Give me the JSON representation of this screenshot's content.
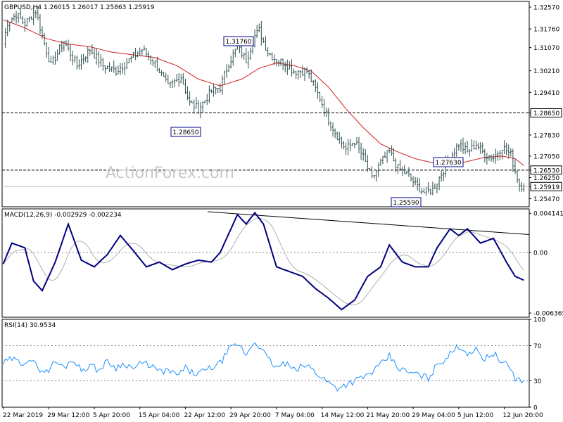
{
  "chart_data": [
    {
      "type": "candlestick",
      "title": "GBPUSD,H4  1.26015 1.26017 1.25863 1.25919",
      "ylim": [
        1.2517,
        1.3278
      ],
      "y_ticks": [
        "1.32570",
        "1.31760",
        "1.31070",
        "1.30210",
        "1.29410",
        "1.28650",
        "1.27830",
        "1.27050",
        "1.26530",
        "1.26250",
        "1.25919",
        "1.25470"
      ],
      "price_labels": [
        {
          "text": "1.32570",
          "value": 1.3257,
          "style": "plain"
        },
        {
          "text": "1.31760",
          "value": 1.3176,
          "style": "plain"
        },
        {
          "text": "1.31070",
          "value": 1.3107,
          "style": "plain"
        },
        {
          "text": "1.30210",
          "value": 1.3021,
          "style": "plain"
        },
        {
          "text": "1.29410",
          "value": 1.2941,
          "style": "plain"
        },
        {
          "text": "1.28650",
          "value": 1.2865,
          "style": "boxed"
        },
        {
          "text": "1.27830",
          "value": 1.2783,
          "style": "plain"
        },
        {
          "text": "1.27050",
          "value": 1.2705,
          "style": "plain"
        },
        {
          "text": "1.26530",
          "value": 1.2653,
          "style": "boxed"
        },
        {
          "text": "1.26250",
          "value": 1.2625,
          "style": "plain"
        },
        {
          "text": "1.25919",
          "value": 1.25919,
          "style": "boxed"
        },
        {
          "text": "1.25470",
          "value": 1.2547,
          "style": "plain"
        }
      ],
      "horizontal_levels": [
        1.2865,
        1.2653
      ],
      "current_price": 1.25919,
      "annotations": [
        {
          "text": "1.31760",
          "value": 1.3176
        },
        {
          "text": "1.28650",
          "value": 1.2865
        },
        {
          "text": "1.27630",
          "value": 1.2763
        },
        {
          "text": "1.25590",
          "value": 1.2559
        }
      ],
      "watermark": "ActionForex.com",
      "key_points": [
        [
          0,
          1.312
        ],
        [
          2,
          1.32
        ],
        [
          6,
          1.323
        ],
        [
          10,
          1.3195
        ],
        [
          15,
          1.3245
        ],
        [
          18,
          1.315
        ],
        [
          22,
          1.304
        ],
        [
          28,
          1.313
        ],
        [
          34,
          1.304
        ],
        [
          40,
          1.31
        ],
        [
          46,
          1.304
        ],
        [
          52,
          1.302
        ],
        [
          58,
          1.306
        ],
        [
          64,
          1.31
        ],
        [
          70,
          1.305
        ],
        [
          76,
          1.296
        ],
        [
          82,
          1.3
        ],
        [
          86,
          1.29
        ],
        [
          90,
          1.288
        ],
        [
          96,
          1.2945
        ],
        [
          100,
          1.296
        ],
        [
          104,
          1.305
        ],
        [
          108,
          1.311
        ],
        [
          112,
          1.306
        ],
        [
          116,
          1.315
        ],
        [
          118,
          1.317
        ],
        [
          122,
          1.309
        ],
        [
          126,
          1.306
        ],
        [
          130,
          1.305
        ],
        [
          134,
          1.302
        ],
        [
          140,
          1.302
        ],
        [
          146,
          1.292
        ],
        [
          150,
          1.284
        ],
        [
          154,
          1.278
        ],
        [
          158,
          1.273
        ],
        [
          162,
          1.276
        ],
        [
          166,
          1.27
        ],
        [
          170,
          1.262
        ],
        [
          174,
          1.268
        ],
        [
          178,
          1.272
        ],
        [
          182,
          1.266
        ],
        [
          186,
          1.264
        ],
        [
          190,
          1.26
        ],
        [
          194,
          1.257
        ],
        [
          198,
          1.258
        ],
        [
          202,
          1.264
        ],
        [
          206,
          1.27
        ],
        [
          210,
          1.275
        ],
        [
          214,
          1.272
        ],
        [
          218,
          1.275
        ],
        [
          222,
          1.271
        ],
        [
          226,
          1.27
        ],
        [
          230,
          1.274
        ],
        [
          234,
          1.271
        ],
        [
          236,
          1.265
        ],
        [
          238,
          1.26
        ],
        [
          240,
          1.2592
        ]
      ],
      "ma_key_points": [
        [
          0,
          1.321
        ],
        [
          10,
          1.318
        ],
        [
          20,
          1.314
        ],
        [
          30,
          1.312
        ],
        [
          40,
          1.311
        ],
        [
          50,
          1.309
        ],
        [
          60,
          1.308
        ],
        [
          70,
          1.307
        ],
        [
          80,
          1.304
        ],
        [
          90,
          1.299
        ],
        [
          100,
          1.2965
        ],
        [
          110,
          1.299
        ],
        [
          118,
          1.303
        ],
        [
          126,
          1.305
        ],
        [
          134,
          1.304
        ],
        [
          142,
          1.302
        ],
        [
          150,
          1.296
        ],
        [
          158,
          1.288
        ],
        [
          166,
          1.281
        ],
        [
          174,
          1.275
        ],
        [
          182,
          1.272
        ],
        [
          190,
          1.2695
        ],
        [
          198,
          1.268
        ],
        [
          206,
          1.267
        ],
        [
          214,
          1.2685
        ],
        [
          222,
          1.27
        ],
        [
          230,
          1.2705
        ],
        [
          236,
          1.2695
        ],
        [
          240,
          1.267
        ]
      ],
      "bars": 240,
      "x_tick_labels": [
        "22 Mar 2019",
        "29 Mar 12:00",
        "5 Apr 20:00",
        "15 Apr 04:00",
        "22 Apr 12:00",
        "29 Apr 20:00",
        "7 May 04:00",
        "14 May 12:00",
        "21 May 20:00",
        "29 May 04:00",
        "5 Jun 12:00",
        "12 Jun 20:00"
      ],
      "x_tick_positions": [
        0,
        21,
        42,
        63,
        84,
        105,
        126,
        147,
        168,
        189,
        210,
        231
      ]
    },
    {
      "type": "line",
      "title": "MACD(12,26,9) -0.002929 -0.002234",
      "ylim": [
        -0.0068,
        0.0046
      ],
      "y_ticks": [
        "0.004141",
        "0.00",
        "-0.006365"
      ],
      "tick_values": [
        0.004141,
        0.0,
        -0.006365
      ],
      "main_key_points": [
        [
          0,
          -0.0012
        ],
        [
          4,
          0.001
        ],
        [
          10,
          0.0005
        ],
        [
          14,
          -0.003
        ],
        [
          18,
          -0.004
        ],
        [
          24,
          -0.001
        ],
        [
          30,
          0.003
        ],
        [
          36,
          -0.0008
        ],
        [
          42,
          -0.0015
        ],
        [
          48,
          -0.0002
        ],
        [
          54,
          0.0018
        ],
        [
          60,
          0.0002
        ],
        [
          66,
          -0.0015
        ],
        [
          72,
          -0.001
        ],
        [
          78,
          -0.0018
        ],
        [
          84,
          -0.0012
        ],
        [
          90,
          -0.0008
        ],
        [
          96,
          -0.001
        ],
        [
          100,
          0.0
        ],
        [
          104,
          0.002
        ],
        [
          108,
          0.004
        ],
        [
          112,
          0.003
        ],
        [
          116,
          0.0042
        ],
        [
          120,
          0.003
        ],
        [
          126,
          -0.0015
        ],
        [
          132,
          -0.002
        ],
        [
          138,
          -0.0025
        ],
        [
          144,
          -0.0038
        ],
        [
          150,
          -0.0048
        ],
        [
          156,
          -0.006
        ],
        [
          162,
          -0.005
        ],
        [
          168,
          -0.0025
        ],
        [
          174,
          -0.0015
        ],
        [
          178,
          0.0008
        ],
        [
          184,
          -0.001
        ],
        [
          190,
          -0.0015
        ],
        [
          196,
          -0.0015
        ],
        [
          200,
          0.0005
        ],
        [
          206,
          0.0025
        ],
        [
          210,
          0.0018
        ],
        [
          214,
          0.0025
        ],
        [
          220,
          0.001
        ],
        [
          226,
          0.0015
        ],
        [
          232,
          -0.001
        ],
        [
          236,
          -0.0025
        ],
        [
          240,
          -0.0029
        ]
      ],
      "signal_lag_bars": 5,
      "trendline": [
        [
          115,
          0.0043
        ],
        [
          295,
          0.0015
        ]
      ]
    },
    {
      "type": "line",
      "title": "RSI(14) 30.9534",
      "ylim": [
        0,
        100
      ],
      "y_ticks": [
        "100",
        "70",
        "30",
        "0"
      ],
      "tick_values": [
        100,
        70,
        30,
        0
      ],
      "levels": [
        70,
        30
      ],
      "key_points": [
        [
          0,
          50
        ],
        [
          4,
          55
        ],
        [
          8,
          50
        ],
        [
          12,
          55
        ],
        [
          16,
          45
        ],
        [
          20,
          40
        ],
        [
          24,
          52
        ],
        [
          28,
          45
        ],
        [
          32,
          55
        ],
        [
          36,
          42
        ],
        [
          40,
          48
        ],
        [
          44,
          42
        ],
        [
          48,
          52
        ],
        [
          52,
          45
        ],
        [
          56,
          50
        ],
        [
          60,
          44
        ],
        [
          64,
          50
        ],
        [
          68,
          48
        ],
        [
          72,
          40
        ],
        [
          76,
          42
        ],
        [
          80,
          36
        ],
        [
          84,
          44
        ],
        [
          88,
          38
        ],
        [
          92,
          40
        ],
        [
          96,
          45
        ],
        [
          100,
          50
        ],
        [
          104,
          65
        ],
        [
          108,
          72
        ],
        [
          112,
          60
        ],
        [
          116,
          75
        ],
        [
          118,
          70
        ],
        [
          122,
          55
        ],
        [
          126,
          45
        ],
        [
          130,
          50
        ],
        [
          134,
          42
        ],
        [
          140,
          48
        ],
        [
          146,
          36
        ],
        [
          150,
          28
        ],
        [
          154,
          22
        ],
        [
          158,
          26
        ],
        [
          162,
          30
        ],
        [
          166,
          34
        ],
        [
          170,
          40
        ],
        [
          174,
          48
        ],
        [
          178,
          58
        ],
        [
          182,
          45
        ],
        [
          186,
          40
        ],
        [
          190,
          38
        ],
        [
          196,
          33
        ],
        [
          200,
          48
        ],
        [
          206,
          60
        ],
        [
          210,
          70
        ],
        [
          214,
          62
        ],
        [
          218,
          65
        ],
        [
          222,
          55
        ],
        [
          226,
          62
        ],
        [
          230,
          50
        ],
        [
          234,
          45
        ],
        [
          236,
          32
        ],
        [
          240,
          31
        ]
      ]
    }
  ]
}
